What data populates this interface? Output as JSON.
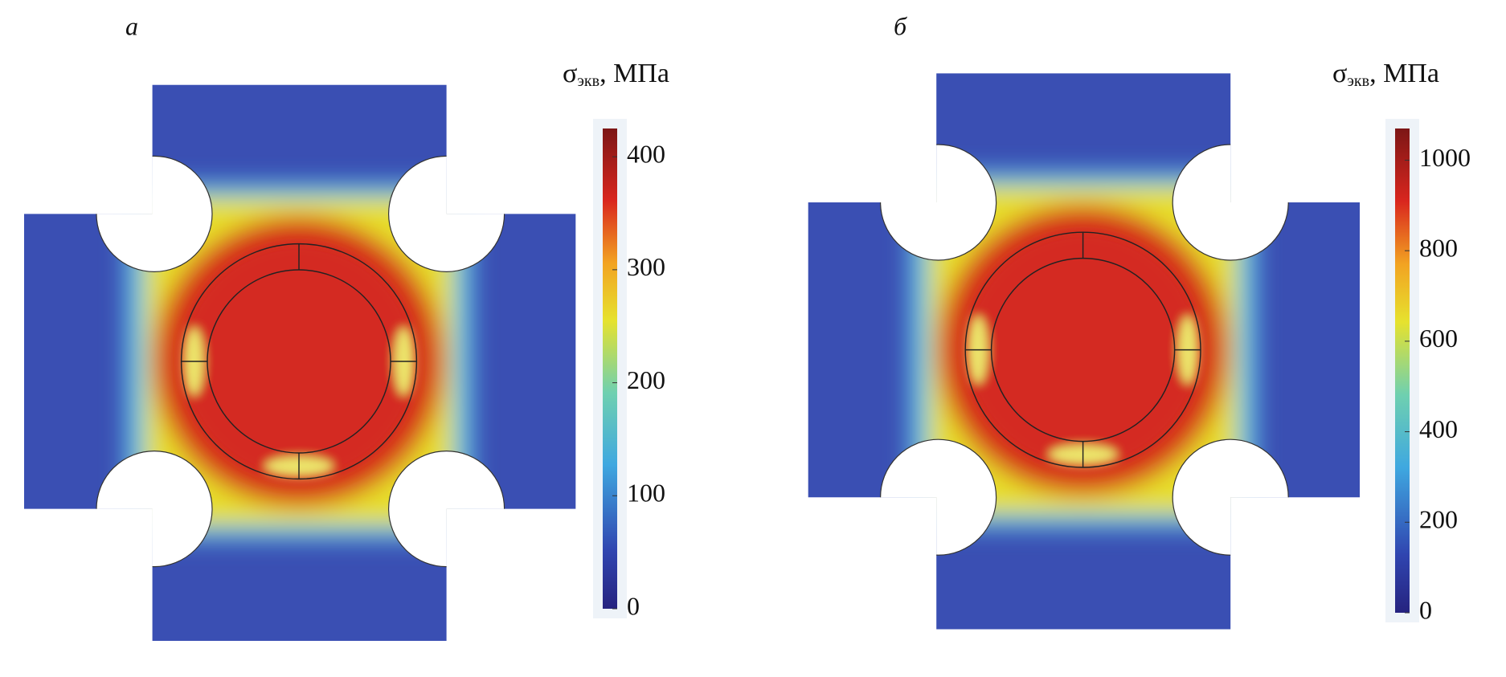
{
  "panels": [
    {
      "label": "а",
      "colorbar": {
        "title": {
          "symbol": "σ",
          "subscript": "экв",
          "unit": ", МПа"
        },
        "lim": [
          0,
          425
        ],
        "ticks": [
          0,
          100,
          200,
          300,
          400
        ]
      }
    },
    {
      "label": "б",
      "colorbar": {
        "title": {
          "symbol": "σ",
          "subscript": "экв",
          "unit": ", МПа"
        },
        "lim": [
          0,
          1070
        ],
        "ticks": [
          0,
          200,
          400,
          600,
          800,
          1000
        ]
      }
    }
  ]
}
